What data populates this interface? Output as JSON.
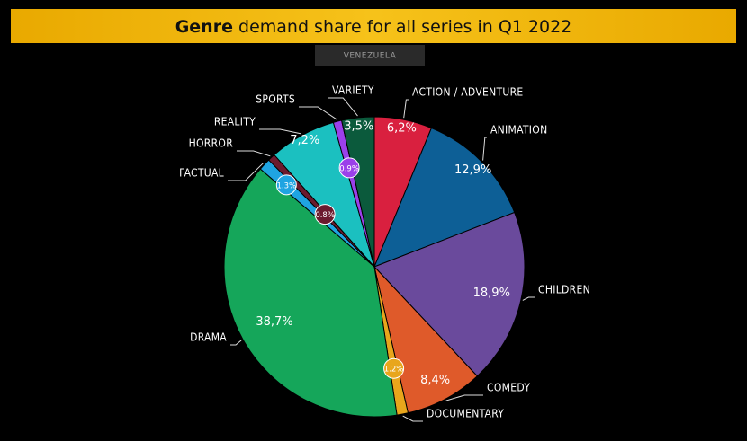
{
  "chart_data": {
    "type": "pie",
    "title": "Genre demand share for all series in Q1 2022",
    "subtitle": "VENEZUELA",
    "categories": [
      "ACTION / ADVENTURE",
      "ANIMATION",
      "CHILDREN",
      "COMEDY",
      "DOCUMENTARY",
      "DRAMA",
      "FACTUAL",
      "HORROR",
      "REALITY",
      "SPORTS",
      "VARIETY"
    ],
    "values": [
      6.2,
      12.9,
      18.9,
      8.4,
      1.2,
      38.7,
      1.3,
      0.8,
      7.2,
      0.9,
      3.5
    ],
    "value_labels": [
      "6,2%",
      "12,9%",
      "18,9%",
      "8,4%",
      "1.2%",
      "38,7%",
      "1.3%",
      "0.8%",
      "7,2%",
      "0.9%",
      "3,5%"
    ],
    "colors": [
      "#d9203f",
      "#0d5f96",
      "#6a4a9c",
      "#df5a2a",
      "#e8a61c",
      "#15a65a",
      "#1fa4e2",
      "#6b1a2e",
      "#1bc0c0",
      "#9b40ea",
      "#0b5a3c"
    ]
  }
}
